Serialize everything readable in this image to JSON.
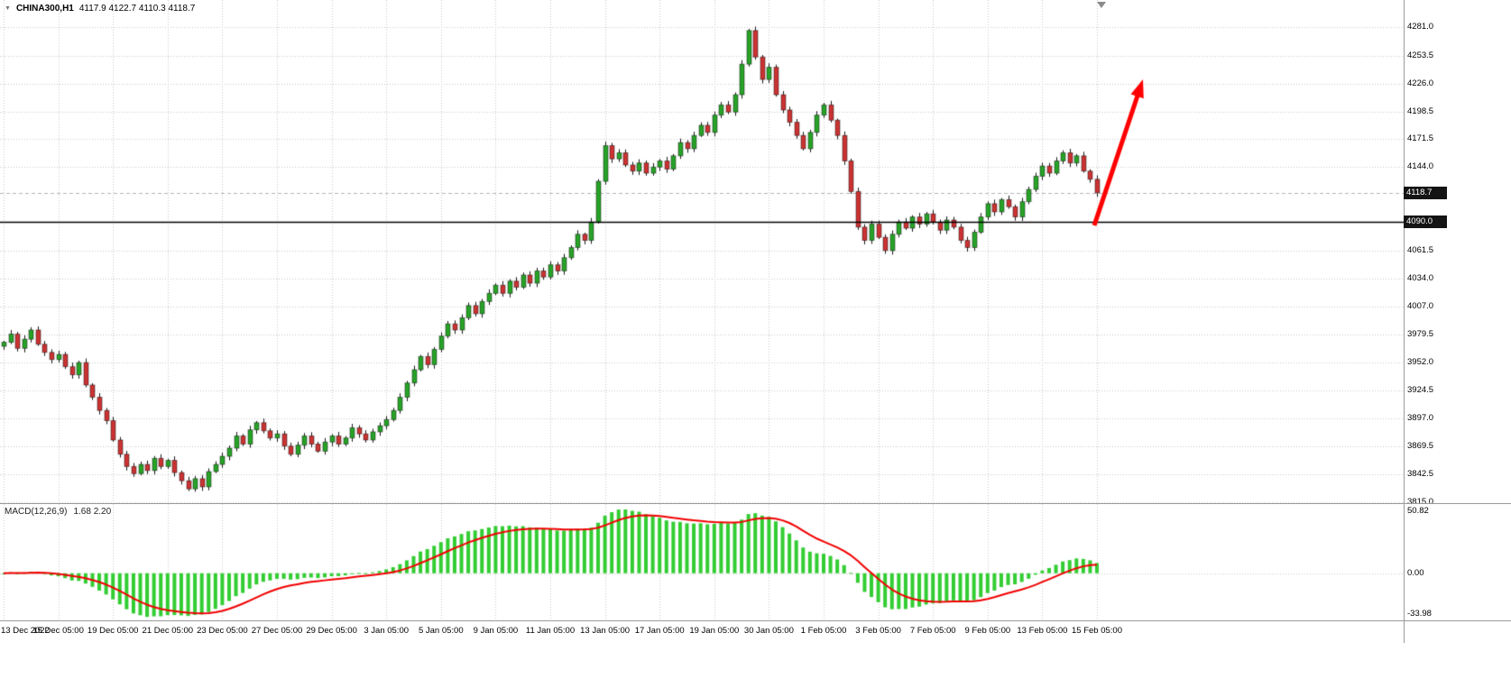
{
  "header": {
    "symbol_label": "CHINA300,H1",
    "ohlc_text": "4117.9 4122.7 4110.3 4118.7"
  },
  "price_axis": {
    "tick_labels": [
      "4281.0",
      "4253.5",
      "4226.0",
      "4198.5",
      "4171.5",
      "4144.0",
      "4061.5",
      "4034.0",
      "4007.0",
      "3979.5",
      "3952.0",
      "3924.5",
      "3897.0",
      "3869.5",
      "3842.5",
      "3815.0"
    ]
  },
  "time_axis": {
    "labels": [
      "13 Dec 2022",
      "15 Dec 05:00",
      "19 Dec 05:00",
      "21 Dec 05:00",
      "23 Dec 05:00",
      "27 Dec 05:00",
      "29 Dec 05:00",
      "3 Jan 05:00",
      "5 Jan 05:00",
      "9 Jan 05:00",
      "11 Jan 05:00",
      "13 Jan 05:00",
      "17 Jan 05:00",
      "19 Jan 05:00",
      "30 Jan 05:00",
      "1 Feb 05:00",
      "3 Feb 05:00",
      "7 Feb 05:00",
      "9 Feb 05:00",
      "13 Feb 05:00",
      "15 Feb 05:00"
    ]
  },
  "macd": {
    "label": "MACD(12,26,9)",
    "values_text": "1.68 2.20",
    "axis_labels": [
      "50.82",
      "0.00",
      "-33.98"
    ]
  },
  "annotations": {
    "current_price": 4118.7,
    "current_price_label": "4118.7",
    "hline_value": 4090.0,
    "hline_label": "4090.0",
    "trend_arrow": {
      "direction": "up",
      "color": "#ff0000"
    }
  },
  "colors": {
    "bull": "#28a428",
    "bear": "#cc3333",
    "wick": "#1a1a1a",
    "grid": "#c9c9c9",
    "hist": "#32CD32",
    "signal_line": "#f20000",
    "bid_line": "#b5b5b5",
    "hline": "#000000",
    "badge_bg": "#141414"
  },
  "chart_data": {
    "type": "candlestick",
    "title": "CHINA300,H1",
    "symbol": "CHINA300",
    "timeframe": "H1",
    "current_ohlc": {
      "open": 4117.9,
      "high": 4122.7,
      "low": 4110.3,
      "close": 4118.7
    },
    "price_range": [
      3814,
      4308
    ],
    "ylim": [
      3815.0,
      4281.0
    ],
    "grid": true,
    "closes": [
      3972,
      3980,
      3966,
      3975,
      3984,
      3970,
      3962,
      3955,
      3960,
      3948,
      3940,
      3952,
      3930,
      3918,
      3905,
      3895,
      3876,
      3862,
      3850,
      3843,
      3852,
      3846,
      3858,
      3850,
      3856,
      3844,
      3836,
      3828,
      3838,
      3830,
      3845,
      3852,
      3860,
      3868,
      3880,
      3872,
      3886,
      3893,
      3885,
      3878,
      3882,
      3870,
      3862,
      3871,
      3880,
      3872,
      3865,
      3874,
      3880,
      3872,
      3878,
      3888,
      3882,
      3876,
      3884,
      3890,
      3896,
      3905,
      3918,
      3932,
      3945,
      3958,
      3950,
      3965,
      3978,
      3990,
      3984,
      3996,
      4008,
      4000,
      4012,
      4020,
      4028,
      4020,
      4032,
      4026,
      4038,
      4030,
      4042,
      4036,
      4048,
      4042,
      4055,
      4065,
      4078,
      4072,
      4090,
      4130,
      4165,
      4152,
      4158,
      4146,
      4140,
      4148,
      4138,
      4144,
      4150,
      4142,
      4155,
      4168,
      4162,
      4175,
      4185,
      4178,
      4195,
      4205,
      4198,
      4215,
      4245,
      4278,
      4252,
      4230,
      4242,
      4215,
      4200,
      4188,
      4175,
      4162,
      4178,
      4195,
      4205,
      4190,
      4175,
      4150,
      4120,
      4085,
      4072,
      4088,
      4075,
      4062,
      4078,
      4090,
      4084,
      4095,
      4088,
      4098,
      4090,
      4082,
      4092,
      4085,
      4072,
      4065,
      4080,
      4095,
      4108,
      4100,
      4112,
      4105,
      4095,
      4110,
      4122,
      4135,
      4145,
      4138,
      4150,
      4158,
      4148,
      4155,
      4140,
      4132,
      4118.7
    ],
    "indicator": {
      "type": "MACD",
      "fast": 12,
      "slow": 26,
      "signal": 9,
      "last_main": 1.68,
      "last_signal": 2.2,
      "range": [
        -33.98,
        50.82
      ]
    }
  }
}
